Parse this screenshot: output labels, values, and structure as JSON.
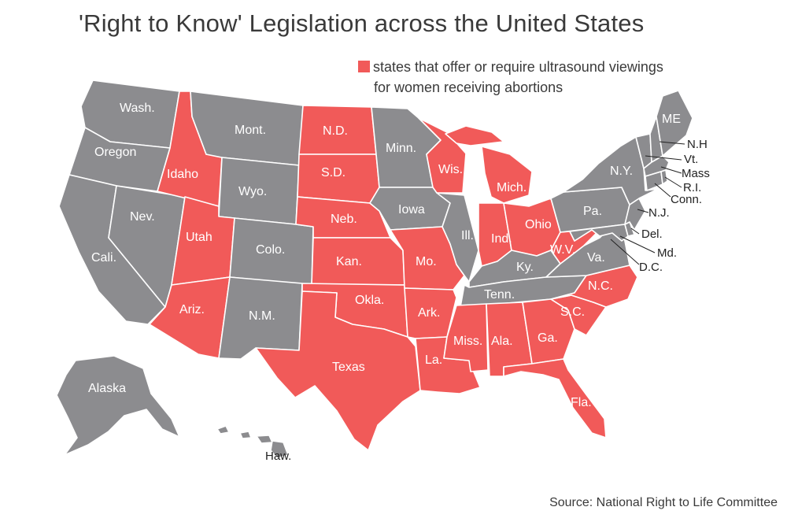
{
  "title": "'Right to Know' Legislation across the United States",
  "legend": {
    "color": "#f15a59",
    "line1": "states that offer or require ultrasound viewings",
    "line2": "for women receiving abortions"
  },
  "source": "Source: National Right to Life Committee",
  "colors": {
    "highlighted": "#f15a59",
    "other": "#8c8c8f"
  },
  "states": {
    "wa": "Wash.",
    "or": "Oregon",
    "ca": "Cali.",
    "nv": "Nev.",
    "id": "Idaho",
    "mt": "Mont.",
    "wy": "Wyo.",
    "ut": "Utah",
    "co": "Colo.",
    "az": "Ariz.",
    "nm": "N.M.",
    "nd": "N.D.",
    "sd": "S.D.",
    "ne": "Neb.",
    "ks": "Kan.",
    "ok": "Okla.",
    "tx": "Texas",
    "mn": "Minn.",
    "ia": "Iowa",
    "mo": "Mo.",
    "ar": "Ark.",
    "la": "La.",
    "wi": "Wis.",
    "il": "Ill.",
    "mi": "Mich.",
    "in": "Ind.",
    "oh": "Ohio",
    "ky": "Ky.",
    "tn": "Tenn.",
    "ms": "Miss.",
    "al": "Ala.",
    "ga": "Ga.",
    "fl": "Fla.",
    "sc": "S.C.",
    "nc": "N.C.",
    "va": "Va.",
    "wv": "W.V.",
    "pa": "Pa.",
    "ny": "N.Y.",
    "me": "ME",
    "nh": "N.H",
    "vt": "Vt.",
    "ma": "Mass",
    "ri": "R.I.",
    "ct": "Conn.",
    "nj": "N.J.",
    "de": "Del.",
    "md": "Md.",
    "dc": "D.C.",
    "ak": "Alaska",
    "hi": "Haw."
  }
}
